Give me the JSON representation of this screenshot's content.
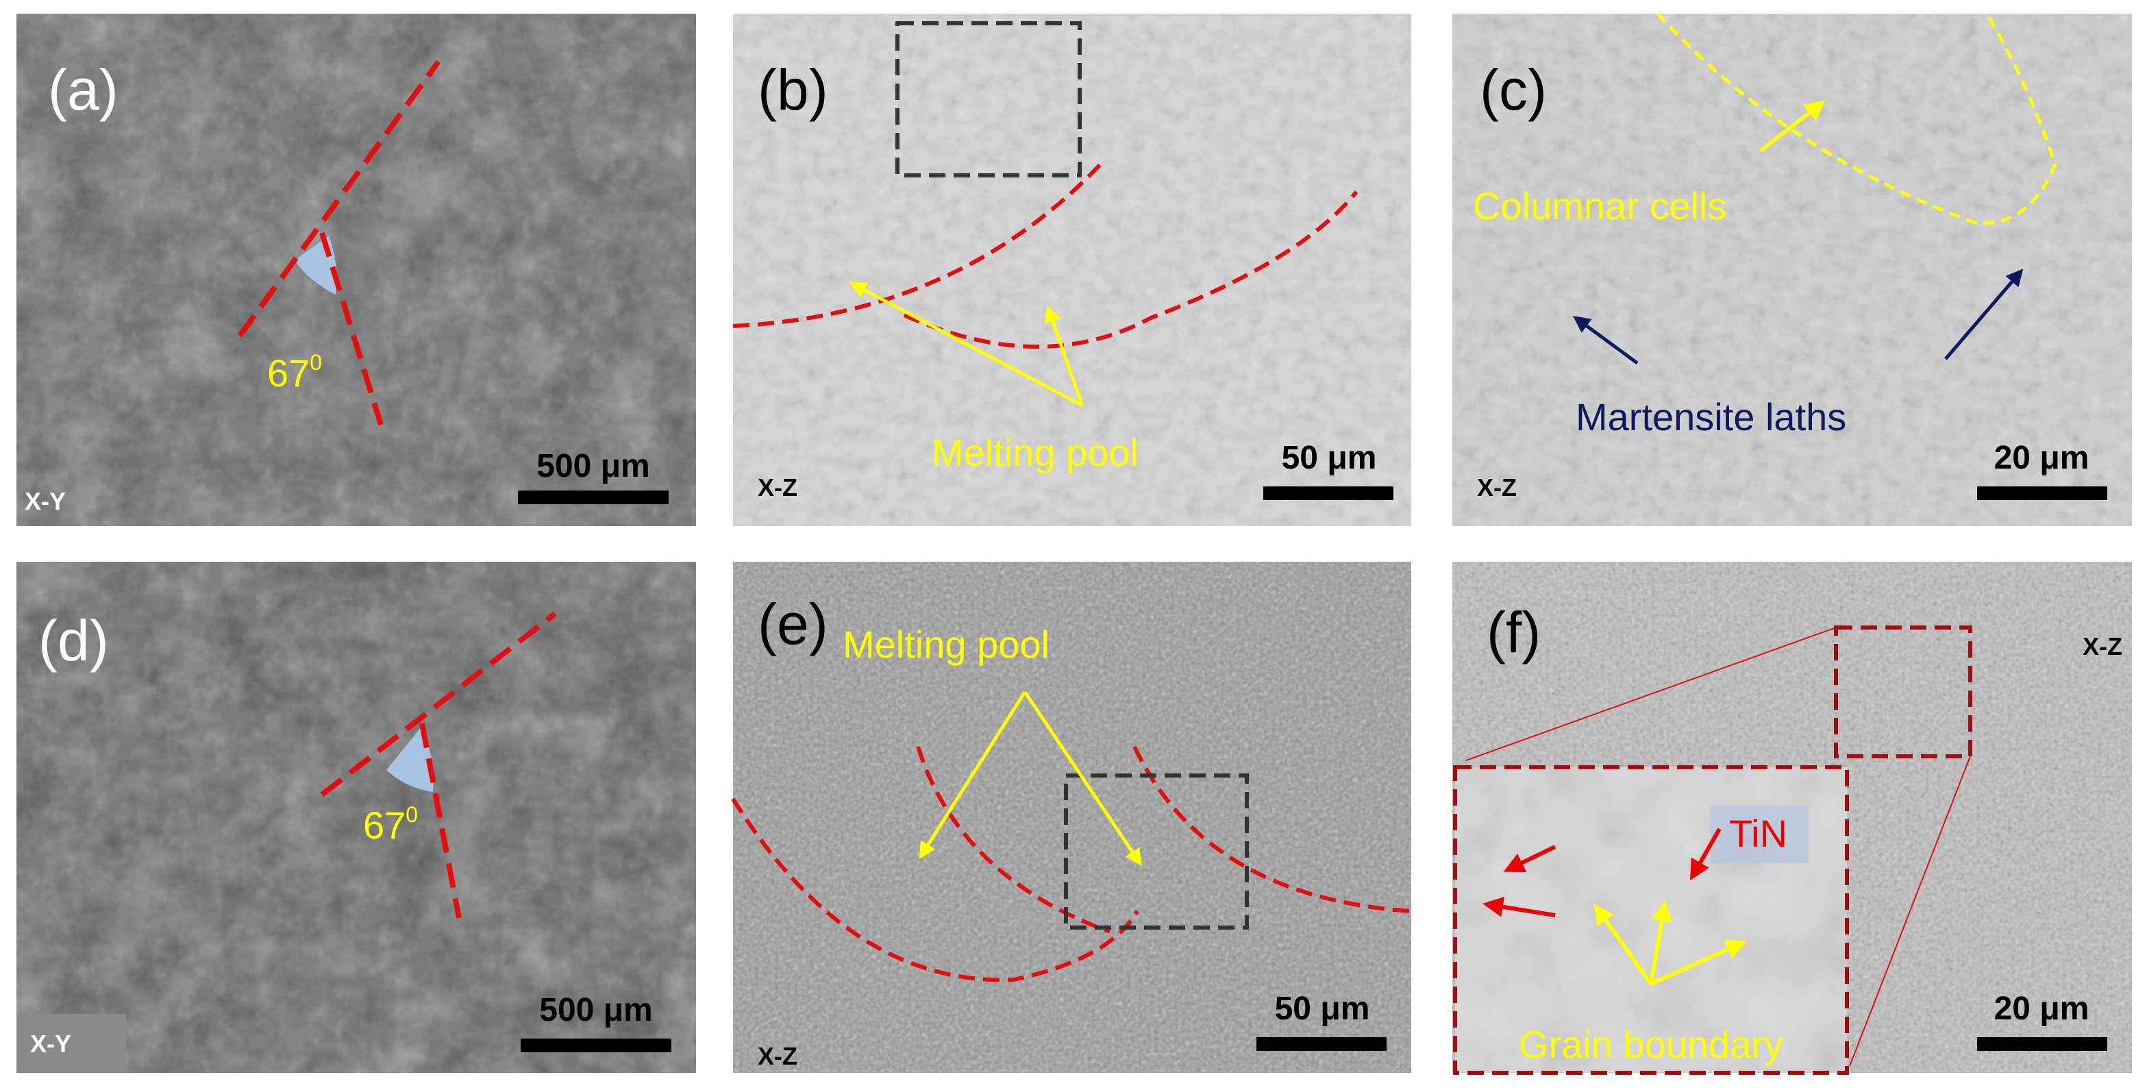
{
  "panels": [
    {
      "label": "(a)",
      "plane": "X-Y",
      "scale_bar": "500 μm",
      "angle": {
        "text": "67",
        "sup": "0"
      }
    },
    {
      "label": "(b)",
      "plane": "X-Z",
      "scale_bar": "50 μm",
      "annotations": [
        "Melting pool"
      ]
    },
    {
      "label": "(c)",
      "plane": "X-Z",
      "scale_bar": "20 μm",
      "annotations": [
        "Columnar cells",
        "Martensite laths"
      ]
    },
    {
      "label": "(d)",
      "plane": "X-Y",
      "scale_bar": "500 μm",
      "angle": {
        "text": "67",
        "sup": "0"
      }
    },
    {
      "label": "(e)",
      "plane": "X-Z",
      "scale_bar": "50 μm",
      "annotations": [
        "Melting pool"
      ]
    },
    {
      "label": "(f)",
      "plane": "X-Z",
      "scale_bar": "20 μm",
      "annotations": [
        "TiN",
        "Grain boundary"
      ]
    }
  ]
}
